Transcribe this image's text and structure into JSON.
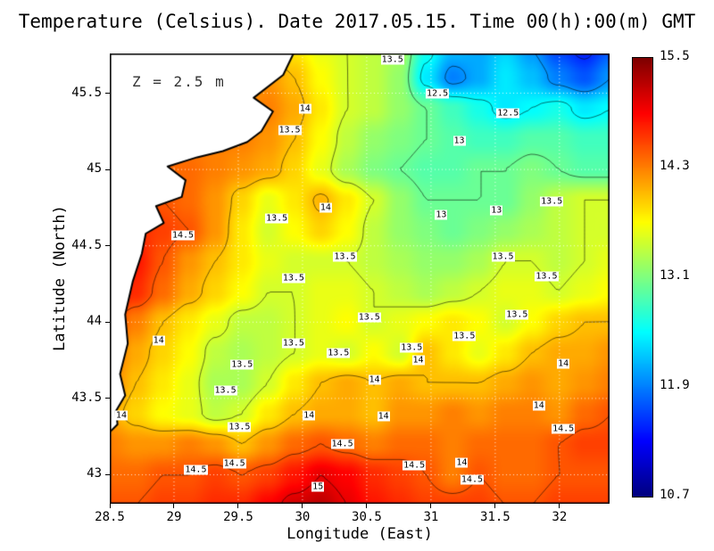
{
  "title": "Temperature (Celsius). Date 2017.05.15. Time 00(h):00(m) GMT",
  "annotation": "Z = 2.5 m",
  "axes": {
    "x": {
      "label": "Longitude (East)",
      "range": [
        28.5,
        32.39
      ],
      "ticks": [
        {
          "label": "28.5",
          "value": 28.5
        },
        {
          "label": "29",
          "value": 29
        },
        {
          "label": "29.5",
          "value": 29.5
        },
        {
          "label": "30",
          "value": 30
        },
        {
          "label": "30.5",
          "value": 30.5
        },
        {
          "label": "31",
          "value": 31
        },
        {
          "label": "31.5",
          "value": 31.5
        },
        {
          "label": "32",
          "value": 32
        }
      ]
    },
    "y": {
      "label": "Latitude (North)",
      "range": [
        42.81,
        45.76
      ],
      "ticks": [
        {
          "label": "43",
          "value": 43
        },
        {
          "label": "43.5",
          "value": 43.5
        },
        {
          "label": "44",
          "value": 44
        },
        {
          "label": "44.5",
          "value": 44.5
        },
        {
          "label": "45",
          "value": 45
        },
        {
          "label": "45.5",
          "value": 45.5
        }
      ]
    }
  },
  "colorbar": {
    "min": 10.7,
    "max": 15.5,
    "colormap": "jet",
    "ticks": [
      {
        "label": "15.5",
        "value": 15.5
      },
      {
        "label": "14.3",
        "value": 14.3
      },
      {
        "label": "13.1",
        "value": 13.1
      },
      {
        "label": "11.9",
        "value": 11.9
      },
      {
        "label": "10.7",
        "value": 10.7
      }
    ]
  },
  "chart_data": {
    "type": "heatmap",
    "title": "Temperature (Celsius). Date 2017.05.15. Time 00(h):00(m) GMT",
    "xlabel": "Longitude (East)",
    "ylabel": "Latitude (North)",
    "depth_annotation": "Z = 2.5 m",
    "value_range": [
      10.7,
      15.5
    ],
    "contour_interval": 0.5,
    "levels": [
      11.5,
      12,
      12.5,
      13,
      13.5,
      14,
      14.5,
      15
    ],
    "grid": {
      "nx": 20,
      "ny": 16,
      "lon_start": 28.5,
      "lon_end": 32.4,
      "lat_start": 45.8,
      "lat_end": 42.8,
      "values_north_to_south": [
        [
          13.8,
          13.8,
          13.8,
          13.8,
          13.8,
          13.8,
          13.8,
          13.8,
          13.6,
          13.5,
          13.4,
          13.3,
          12.6,
          12.2,
          12.1,
          12.3,
          12.0,
          11.6,
          11.4,
          11.7
        ],
        [
          14.0,
          14.0,
          14.0,
          14.0,
          14.0,
          14.0,
          14.2,
          14.0,
          13.7,
          13.5,
          13.4,
          13.2,
          12.4,
          11.9,
          12.1,
          12.4,
          12.2,
          11.9,
          11.7,
          12.0
        ],
        [
          14.3,
          14.3,
          14.3,
          14.3,
          14.3,
          14.3,
          14.3,
          14.1,
          13.8,
          13.5,
          13.4,
          13.2,
          13.0,
          12.8,
          12.6,
          12.4,
          12.5,
          12.6,
          12.4,
          12.5
        ],
        [
          14.3,
          14.3,
          14.3,
          14.3,
          14.3,
          14.3,
          14.2,
          14.0,
          13.7,
          13.4,
          13.2,
          13.1,
          13.0,
          12.9,
          12.8,
          12.8,
          12.9,
          12.9,
          12.8,
          12.8
        ],
        [
          14.4,
          14.4,
          14.4,
          14.4,
          14.3,
          14.2,
          14.1,
          13.9,
          13.6,
          13.3,
          13.1,
          13.0,
          12.9,
          12.9,
          13.0,
          13.0,
          13.1,
          13.0,
          12.9,
          12.9
        ],
        [
          14.5,
          14.5,
          14.5,
          14.4,
          14.2,
          13.9,
          13.6,
          13.8,
          14.05,
          13.8,
          13.5,
          13.2,
          13.0,
          13.0,
          13.0,
          13.0,
          13.2,
          13.4,
          13.5,
          13.5
        ],
        [
          14.7,
          14.7,
          14.6,
          14.5,
          14.2,
          13.8,
          13.5,
          13.7,
          13.9,
          13.7,
          13.4,
          13.2,
          13.1,
          13.0,
          13.1,
          13.2,
          13.3,
          13.4,
          13.5,
          13.5
        ],
        [
          14.8,
          14.8,
          14.5,
          14.2,
          14.0,
          13.8,
          13.6,
          13.5,
          13.5,
          13.5,
          13.4,
          13.3,
          13.2,
          13.2,
          13.3,
          13.5,
          13.5,
          13.4,
          13.5,
          13.6
        ],
        [
          14.9,
          14.7,
          14.4,
          14.1,
          13.9,
          13.7,
          13.5,
          13.5,
          13.6,
          13.6,
          13.5,
          13.4,
          13.3,
          13.4,
          13.5,
          13.6,
          13.6,
          13.5,
          13.6,
          13.7
        ],
        [
          14.6,
          14.3,
          14.0,
          13.8,
          13.6,
          13.4,
          13.4,
          13.5,
          13.6,
          13.7,
          13.5,
          13.6,
          13.7,
          13.8,
          13.7,
          13.5,
          13.7,
          13.9,
          14.0,
          14.0
        ],
        [
          14.4,
          14.1,
          13.9,
          13.7,
          13.4,
          13.3,
          13.4,
          13.5,
          13.6,
          13.5,
          13.7,
          13.5,
          14.0,
          13.8,
          13.6,
          13.8,
          14.0,
          14.1,
          14.1,
          14.2
        ],
        [
          14.3,
          14.0,
          13.8,
          13.6,
          13.3,
          13.3,
          13.5,
          13.8,
          14.0,
          14.1,
          14.0,
          14.1,
          14.0,
          14.0,
          14.0,
          14.1,
          14.2,
          14.1,
          14.2,
          14.3
        ],
        [
          14.1,
          13.9,
          13.7,
          13.6,
          13.4,
          13.5,
          13.8,
          14.0,
          14.1,
          14.1,
          14.0,
          14.2,
          14.2,
          14.3,
          14.2,
          14.3,
          14.3,
          14.2,
          14.4,
          14.5
        ],
        [
          14.3,
          14.2,
          14.2,
          14.3,
          14.2,
          14.0,
          14.2,
          14.4,
          14.5,
          14.4,
          14.3,
          14.4,
          14.4,
          14.3,
          14.4,
          14.4,
          14.4,
          14.5,
          14.6,
          14.6
        ],
        [
          14.4,
          14.4,
          14.5,
          14.5,
          14.6,
          14.5,
          14.6,
          14.8,
          15.0,
          14.9,
          14.7,
          14.6,
          14.5,
          14.3,
          14.5,
          14.4,
          14.4,
          14.5,
          14.5,
          14.5
        ],
        [
          14.5,
          14.5,
          14.6,
          14.6,
          14.7,
          14.7,
          14.9,
          15.1,
          15.2,
          15.0,
          14.8,
          14.7,
          14.6,
          14.6,
          14.6,
          14.5,
          14.5,
          14.6,
          14.6,
          14.6
        ]
      ]
    },
    "land_polygon": [
      [
        28.5,
        45.76
      ],
      [
        29.93,
        45.76
      ],
      [
        29.85,
        45.62
      ],
      [
        29.62,
        45.47
      ],
      [
        29.77,
        45.38
      ],
      [
        29.68,
        45.25
      ],
      [
        29.57,
        45.18
      ],
      [
        29.38,
        45.12
      ],
      [
        29.18,
        45.08
      ],
      [
        28.95,
        45.02
      ],
      [
        29.09,
        44.93
      ],
      [
        29.06,
        44.82
      ],
      [
        28.86,
        44.76
      ],
      [
        28.92,
        44.65
      ],
      [
        28.78,
        44.58
      ],
      [
        28.75,
        44.45
      ],
      [
        28.68,
        44.27
      ],
      [
        28.62,
        44.05
      ],
      [
        28.64,
        43.86
      ],
      [
        28.58,
        43.66
      ],
      [
        28.62,
        43.52
      ],
      [
        28.55,
        43.42
      ],
      [
        28.56,
        43.33
      ],
      [
        28.5,
        43.28
      ]
    ],
    "contour_labels": [
      {
        "v": "13.5",
        "lon": 30.7,
        "lat": 45.72
      },
      {
        "v": "12.5",
        "lon": 31.05,
        "lat": 45.5
      },
      {
        "v": "12.5",
        "lon": 31.6,
        "lat": 45.37
      },
      {
        "v": "14",
        "lon": 30.02,
        "lat": 45.4
      },
      {
        "v": "13.5",
        "lon": 29.9,
        "lat": 45.26
      },
      {
        "v": "13",
        "lon": 31.22,
        "lat": 45.19
      },
      {
        "v": "14",
        "lon": 30.18,
        "lat": 44.75
      },
      {
        "v": "13.5",
        "lon": 29.8,
        "lat": 44.68
      },
      {
        "v": "14.5",
        "lon": 29.07,
        "lat": 44.57
      },
      {
        "v": "13",
        "lon": 31.08,
        "lat": 44.7
      },
      {
        "v": "13",
        "lon": 31.51,
        "lat": 44.73
      },
      {
        "v": "13.5",
        "lon": 31.94,
        "lat": 44.79
      },
      {
        "v": "13.5",
        "lon": 30.33,
        "lat": 44.43
      },
      {
        "v": "13.5",
        "lon": 31.56,
        "lat": 44.43
      },
      {
        "v": "13.5",
        "lon": 29.93,
        "lat": 44.29
      },
      {
        "v": "13.5",
        "lon": 31.9,
        "lat": 44.3
      },
      {
        "v": "13.5",
        "lon": 30.52,
        "lat": 44.03
      },
      {
        "v": "13.5",
        "lon": 31.67,
        "lat": 44.05
      },
      {
        "v": "13.5",
        "lon": 31.26,
        "lat": 43.91
      },
      {
        "v": "14",
        "lon": 28.88,
        "lat": 43.88
      },
      {
        "v": "13.5",
        "lon": 29.93,
        "lat": 43.86
      },
      {
        "v": "13.5",
        "lon": 30.28,
        "lat": 43.8
      },
      {
        "v": "13.5",
        "lon": 30.85,
        "lat": 43.83
      },
      {
        "v": "14",
        "lon": 30.9,
        "lat": 43.75
      },
      {
        "v": "14",
        "lon": 32.03,
        "lat": 43.73
      },
      {
        "v": "13.5",
        "lon": 29.53,
        "lat": 43.72
      },
      {
        "v": "13.5",
        "lon": 29.4,
        "lat": 43.55
      },
      {
        "v": "14",
        "lon": 30.56,
        "lat": 43.62
      },
      {
        "v": "14",
        "lon": 31.84,
        "lat": 43.45
      },
      {
        "v": "14",
        "lon": 28.59,
        "lat": 43.39
      },
      {
        "v": "14",
        "lon": 30.05,
        "lat": 43.39
      },
      {
        "v": "14",
        "lon": 30.63,
        "lat": 43.38
      },
      {
        "v": "13.5",
        "lon": 29.51,
        "lat": 43.31
      },
      {
        "v": "14.5",
        "lon": 32.03,
        "lat": 43.3
      },
      {
        "v": "14.5",
        "lon": 30.31,
        "lat": 43.2
      },
      {
        "v": "14",
        "lon": 31.24,
        "lat": 43.08
      },
      {
        "v": "14.5",
        "lon": 30.87,
        "lat": 43.06
      },
      {
        "v": "14.5",
        "lon": 29.17,
        "lat": 43.03
      },
      {
        "v": "14.5",
        "lon": 29.47,
        "lat": 43.07
      },
      {
        "v": "15",
        "lon": 30.12,
        "lat": 42.92
      },
      {
        "v": "14.5",
        "lon": 31.32,
        "lat": 42.97
      }
    ]
  }
}
